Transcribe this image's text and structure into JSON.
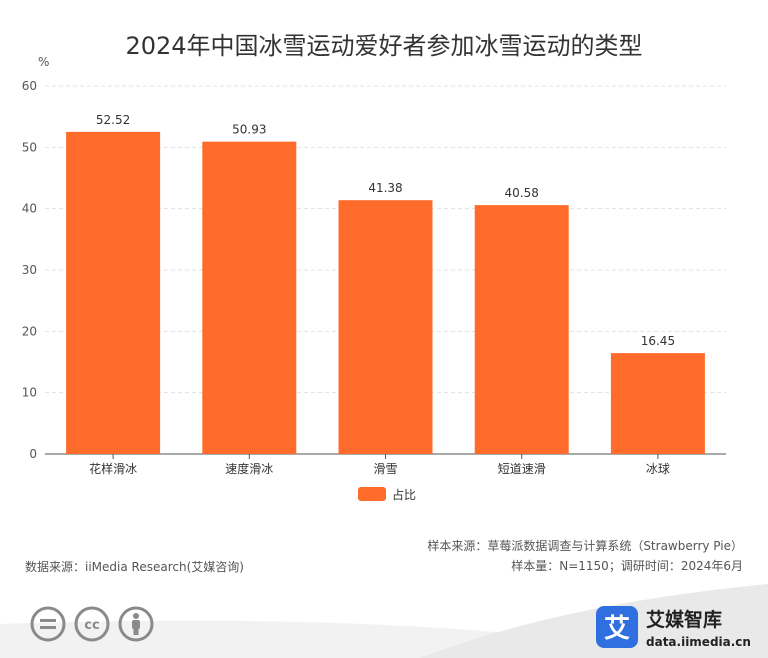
{
  "chart_data": {
    "type": "bar",
    "title": "2024年中国冰雪运动爱好者参加冰雪运动的类型",
    "ylabel": "%",
    "ylim": [
      0,
      60
    ],
    "yticks": [
      0,
      10,
      20,
      30,
      40,
      50,
      60
    ],
    "categories": [
      "花样滑冰",
      "速度滑冰",
      "滑雪",
      "短道速滑",
      "冰球"
    ],
    "series": [
      {
        "name": "占比",
        "values": [
          52.52,
          50.93,
          41.38,
          40.58,
          16.45
        ]
      }
    ],
    "data_labels": [
      "52.52",
      "50.93",
      "41.38",
      "40.58",
      "16.45"
    ],
    "grid": true,
    "legend": "bottom-center",
    "bar_color": "#ff6b2b"
  },
  "source": {
    "left": "数据来源：iiMedia Research(艾媒咨询)",
    "sample_source": "样本来源：草莓派数据调查与计算系统（Strawberry Pie）",
    "sample_info": "样本量：N=1150；调研时间：2024年6月"
  },
  "logo": {
    "mark": "艾",
    "name": "艾媒智库",
    "url": "data.iimedia.cn",
    "color": "#2f6fe0"
  },
  "license_icons": [
    "equals-icon",
    "cc-icon",
    "person-icon"
  ],
  "license_text": {
    "cc": "cc"
  }
}
